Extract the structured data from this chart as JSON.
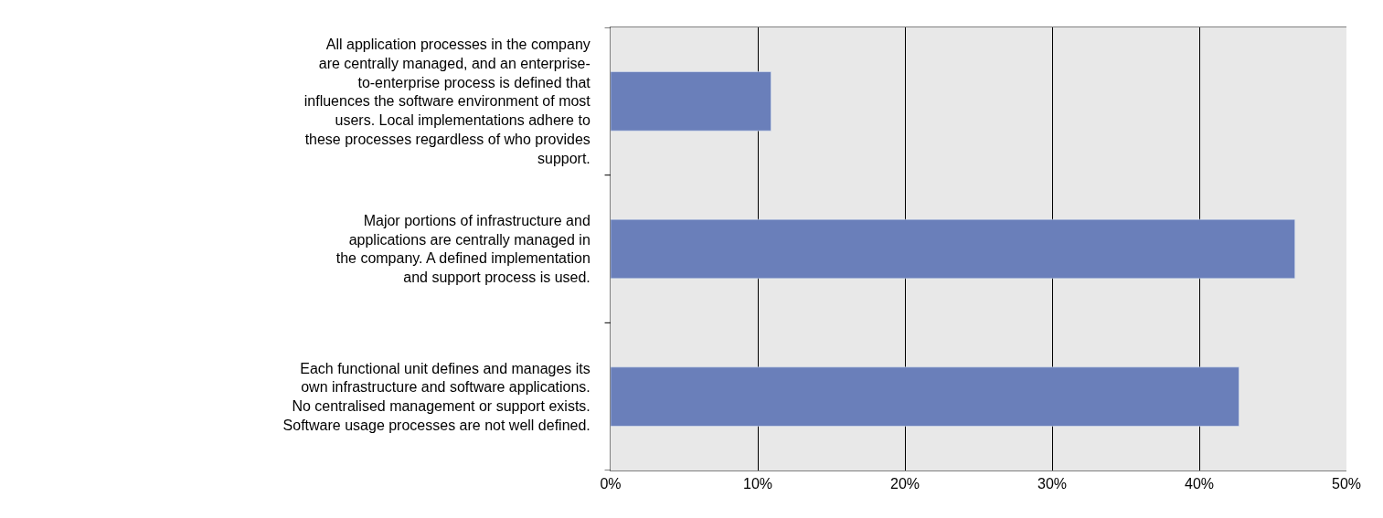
{
  "chart_data": {
    "type": "bar",
    "orientation": "horizontal",
    "categories": [
      "All application processes in the company are centrally managed, and an enterprise-to-enterprise process is defined that influences the software environment of most users. Local implementations adhere to these processes regardless of who provides support.",
      "Major portions of infrastructure and applications are centrally managed in the company. A defined implementation and support process is used.",
      "Each functional unit defines and manages its own infrastructure and software applications. No centralised management or support exists. Software usage processes are not well defined."
    ],
    "values": [
      10.9,
      46.5,
      42.7
    ],
    "color": "#6a7fba",
    "xlim": [
      0,
      50
    ],
    "xticks": [
      {
        "value": 0,
        "label": "0%"
      },
      {
        "value": 10,
        "label": "10%"
      },
      {
        "value": 20,
        "label": "20%"
      },
      {
        "value": 30,
        "label": "30%"
      },
      {
        "value": 40,
        "label": "40%"
      },
      {
        "value": 50,
        "label": "50%"
      }
    ],
    "grid": "x"
  }
}
